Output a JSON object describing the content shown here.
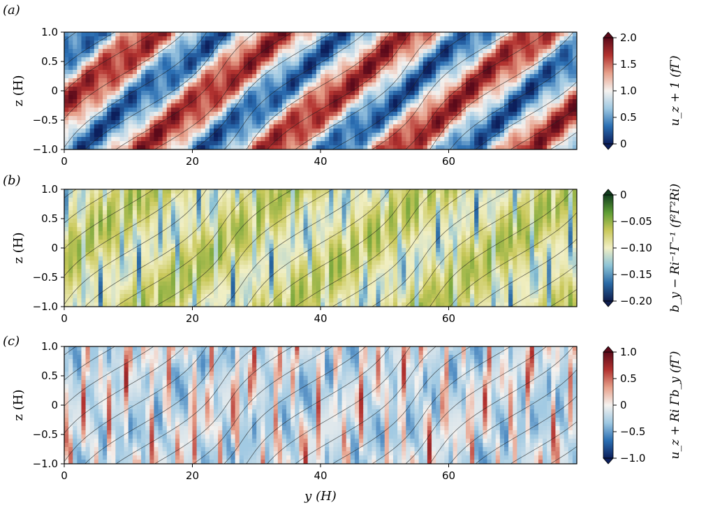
{
  "chart_data": [
    {
      "type": "heatmap",
      "panel_label": "(a)",
      "xlabel": "",
      "ylabel": "z (H)",
      "colorbar_label": "u_z + 1 (fΓ)",
      "xlim": [
        0,
        80
      ],
      "ylim": [
        -1.0,
        1.0
      ],
      "xticks": [
        "0",
        "20",
        "40",
        "60"
      ],
      "yticks": [
        "1.0",
        "0.5",
        "0",
        "−0.5",
        "−1.0"
      ],
      "clim": [
        0,
        2.0
      ],
      "cbar_ticks": [
        "2.0",
        "1.5",
        "1.0",
        "0.5",
        "0"
      ],
      "colormap": "RdBu_r",
      "colormap_stops": [
        "#0c1f5c",
        "#2b6fb3",
        "#9ec8e2",
        "#f5f2ef",
        "#e7a08a",
        "#b2322f",
        "#5c0a1a"
      ],
      "pattern": "diagonal bands tilted upward-right, alternating red and blue"
    },
    {
      "type": "heatmap",
      "panel_label": "(b)",
      "xlabel": "",
      "ylabel": "z (H)",
      "colorbar_label": "b_y − Ri⁻¹Γ⁻¹ (f²Γ²Ri)",
      "xlim": [
        0,
        80
      ],
      "ylim": [
        -1.0,
        1.0
      ],
      "xticks": [
        "0",
        "20",
        "40",
        "60"
      ],
      "yticks": [
        "1.0",
        "0.5",
        "0",
        "−0.5",
        "−1.0"
      ],
      "clim": [
        -0.2,
        0
      ],
      "cbar_ticks": [
        "0",
        "−0.05",
        "−0.10",
        "−0.15",
        "−0.20"
      ],
      "colormap": "delta",
      "colormap_stops": [
        "#0f1e4e",
        "#2a6aa6",
        "#8cc3d6",
        "#f1efc4",
        "#c9c85a",
        "#5e9d34",
        "#113d1e"
      ],
      "pattern": "yellow-green background with blue vertical streaks"
    },
    {
      "type": "heatmap",
      "panel_label": "(c)",
      "xlabel": "y (H)",
      "ylabel": "z (H)",
      "colorbar_label": "u_z + Ri Γb_y (fΓ)",
      "xlim": [
        0,
        80
      ],
      "ylim": [
        -1.0,
        1.0
      ],
      "xticks": [
        "0",
        "20",
        "40",
        "60"
      ],
      "yticks": [
        "1.0",
        "0.5",
        "0",
        "−0.5",
        "−1.0"
      ],
      "clim": [
        -1.0,
        1.0
      ],
      "cbar_ticks": [
        "1.0",
        "0.5",
        "0",
        "−0.5",
        "−1.0"
      ],
      "colormap": "RdBu_r",
      "colormap_stops": [
        "#0c1f5c",
        "#2b6fb3",
        "#9ec8e2",
        "#f5f2ef",
        "#e7a08a",
        "#b2322f",
        "#5c0a1a"
      ],
      "pattern": "light blue background with red vertical streaks"
    }
  ]
}
